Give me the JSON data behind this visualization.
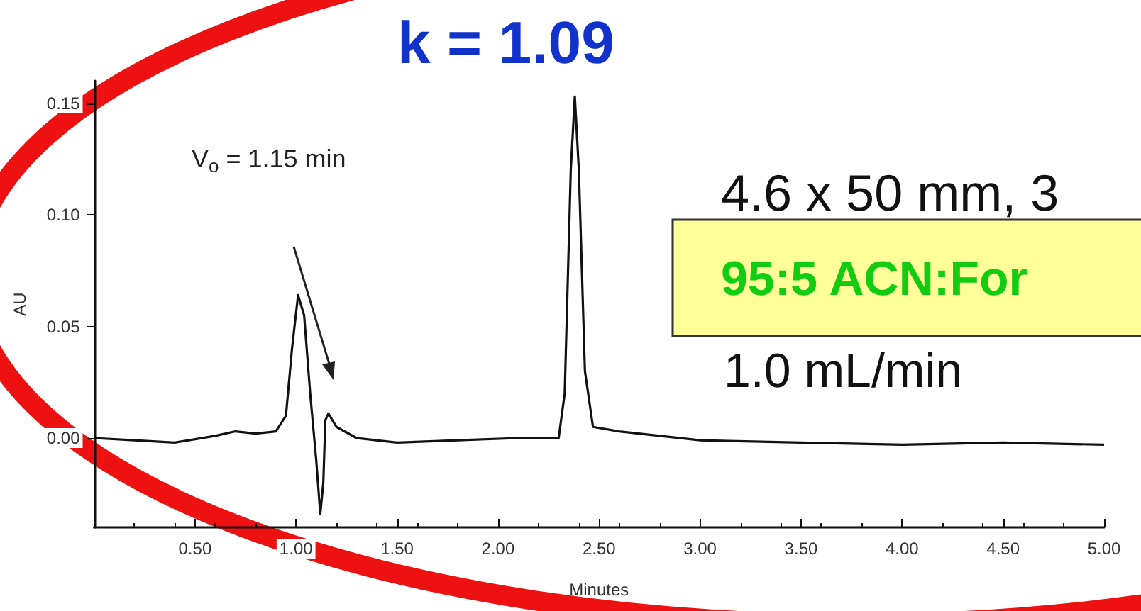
{
  "chart_data": {
    "type": "line",
    "title": "k = 1.09",
    "xlabel": "Minutes",
    "ylabel": "AU",
    "annotations": [
      "V$_{o}$ = 1.15 min",
      "4.6 x 50 mm, 3",
      "95:5 ACN:For",
      "1.0 mL/min"
    ],
    "series": [
      {
        "color": "#111111",
        "x": [
          0,
          0.2,
          0.4,
          0.6,
          0.7,
          0.8,
          0.9,
          0.95,
          0.98,
          1.01,
          1.04,
          1.07,
          1.1,
          1.12,
          1.135,
          1.145,
          1.16,
          1.2,
          1.3,
          1.5,
          1.8,
          2.1,
          2.3,
          2.33,
          2.36,
          2.38,
          2.4,
          2.43,
          2.47,
          2.6,
          3.0,
          3.5,
          4.0,
          4.5,
          5.0
        ],
        "values": [
          0,
          -0.001,
          -0.002,
          0.001,
          0.003,
          0.002,
          0.003,
          0.01,
          0.04,
          0.064,
          0.055,
          0.02,
          -0.01,
          -0.034,
          -0.02,
          0.008,
          0.011,
          0.005,
          0,
          -0.002,
          -0.001,
          0,
          0,
          0.02,
          0.12,
          0.153,
          0.12,
          0.03,
          0.005,
          0.003,
          -0.001,
          -0.002,
          -0.003,
          -0.002,
          -0.003
        ]
      }
    ],
    "xlim": [
      0,
      5
    ],
    "ylim": [
      -0.04,
      0.16
    ],
    "xticks": [
      {
        "value": 0.5,
        "label": "0.50"
      },
      {
        "value": 1,
        "label": "1.00"
      },
      {
        "value": 1.5,
        "label": "1.50"
      },
      {
        "value": 2,
        "label": "2.00"
      },
      {
        "value": 2.5,
        "label": "2.50"
      },
      {
        "value": 3,
        "label": "3.00"
      },
      {
        "value": 3.5,
        "label": "3.50"
      },
      {
        "value": 4,
        "label": "4.00"
      },
      {
        "value": 4.5,
        "label": "4.50"
      },
      {
        "value": 5,
        "label": "5.00"
      }
    ],
    "yticks": [
      {
        "value": 0,
        "label": "0.00"
      },
      {
        "value": 0.05,
        "label": "0.05"
      },
      {
        "value": 0.1,
        "label": "0.10"
      },
      {
        "value": 0.15,
        "label": "0.15"
      }
    ],
    "grid": false,
    "marker": "none",
    "line_style": "solid"
  }
}
